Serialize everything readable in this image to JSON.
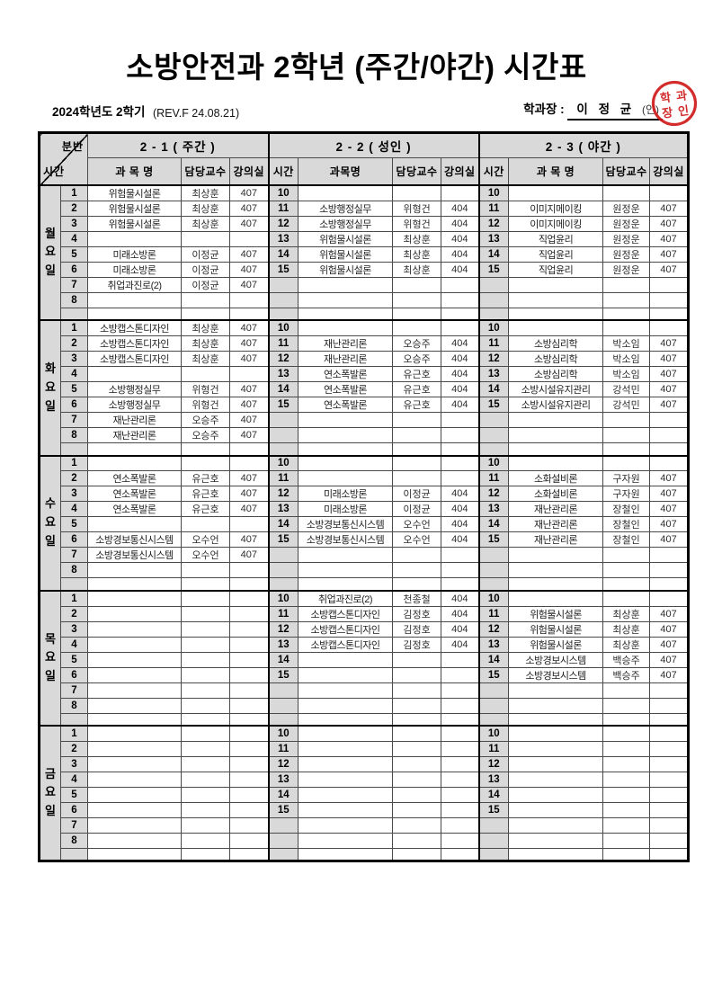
{
  "page": {
    "title": "소방안전과 2학년 (주간/야간) 시간표",
    "semester": "2024학년도 2학기",
    "revision": "(REV.F 24.08.21)",
    "signature_label": "학과장 :",
    "signature_name": "이 정 균",
    "signature_seal_suffix": "(인)",
    "stamp_chars": [
      "학",
      "과",
      "장",
      "인"
    ]
  },
  "colors": {
    "header_bg": "#d9d9d9",
    "stamp_red": "#cf1b1b",
    "border": "#000000"
  },
  "header": {
    "corner_top": "분반",
    "corner_bottom": "시간",
    "groups": [
      {
        "label": "2 - 1 ( 주간 )",
        "cols": [
          "과 목 명",
          "담당교수",
          "강의실"
        ]
      },
      {
        "label": "2 - 2 ( 성인  )",
        "cols": [
          "시간",
          "과목명",
          "담당교수",
          "강의실"
        ]
      },
      {
        "label": "2 - 3 ( 야간 )",
        "cols": [
          "시간",
          "과 목 명",
          "담당교수",
          "강의실"
        ]
      }
    ]
  },
  "days": [
    {
      "name": "월요일",
      "rows": [
        [
          "1",
          "위험물시설론",
          "최상훈",
          "407",
          "10",
          "",
          "",
          "",
          "10",
          "",
          "",
          ""
        ],
        [
          "2",
          "위험물시설론",
          "최상훈",
          "407",
          "11",
          "소방행정실무",
          "위형건",
          "404",
          "11",
          "이미지메이킹",
          "원정운",
          "407"
        ],
        [
          "3",
          "위험물시설론",
          "최상훈",
          "407",
          "12",
          "소방행정실무",
          "위형건",
          "404",
          "12",
          "이미지메이킹",
          "원정운",
          "407"
        ],
        [
          "4",
          "",
          "",
          "",
          "13",
          "위험물시설론",
          "최상훈",
          "404",
          "13",
          "직업윤리",
          "원정운",
          "407"
        ],
        [
          "5",
          "미래소방론",
          "이정균",
          "407",
          "14",
          "위험물시설론",
          "최상훈",
          "404",
          "14",
          "직업윤리",
          "원정운",
          "407"
        ],
        [
          "6",
          "미래소방론",
          "이정균",
          "407",
          "15",
          "위험물시설론",
          "최상훈",
          "404",
          "15",
          "직업윤리",
          "원정운",
          "407"
        ],
        [
          "7",
          "취업과진로(2)",
          "이정균",
          "407",
          "",
          "",
          "",
          "",
          "",
          "",
          "",
          ""
        ],
        [
          "8",
          "",
          "",
          "",
          "",
          "",
          "",
          "",
          "",
          "",
          "",
          ""
        ],
        [
          "",
          "",
          "",
          "",
          "",
          "",
          "",
          "",
          "",
          "",
          "",
          ""
        ]
      ]
    },
    {
      "name": "화요일",
      "rows": [
        [
          "1",
          "소방캡스톤디자인",
          "최상훈",
          "407",
          "10",
          "",
          "",
          "",
          "10",
          "",
          "",
          ""
        ],
        [
          "2",
          "소방캡스톤디자인",
          "최상훈",
          "407",
          "11",
          "재난관리론",
          "오승주",
          "404",
          "11",
          "소방심리학",
          "박소임",
          "407"
        ],
        [
          "3",
          "소방캡스톤디자인",
          "최상훈",
          "407",
          "12",
          "재난관리론",
          "오승주",
          "404",
          "12",
          "소방심리학",
          "박소임",
          "407"
        ],
        [
          "4",
          "",
          "",
          "",
          "13",
          "연소폭발론",
          "유근호",
          "404",
          "13",
          "소방심리학",
          "박소임",
          "407"
        ],
        [
          "5",
          "소방행정실무",
          "위형건",
          "407",
          "14",
          "연소폭발론",
          "유근호",
          "404",
          "14",
          "소방시설유지관리",
          "강석민",
          "407"
        ],
        [
          "6",
          "소방행정실무",
          "위형건",
          "407",
          "15",
          "연소폭발론",
          "유근호",
          "404",
          "15",
          "소방시설유지관리",
          "강석민",
          "407"
        ],
        [
          "7",
          "재난관리론",
          "오승주",
          "407",
          "",
          "",
          "",
          "",
          "",
          "",
          "",
          ""
        ],
        [
          "8",
          "재난관리론",
          "오승주",
          "407",
          "",
          "",
          "",
          "",
          "",
          "",
          "",
          ""
        ],
        [
          "",
          "",
          "",
          "",
          "",
          "",
          "",
          "",
          "",
          "",
          "",
          ""
        ]
      ]
    },
    {
      "name": "수요일",
      "rows": [
        [
          "1",
          "",
          "",
          "",
          "10",
          "",
          "",
          "",
          "10",
          "",
          "",
          ""
        ],
        [
          "2",
          "연소폭발론",
          "유근호",
          "407",
          "11",
          "",
          "",
          "",
          "11",
          "소화설비론",
          "구자원",
          "407"
        ],
        [
          "3",
          "연소폭발론",
          "유근호",
          "407",
          "12",
          "미래소방론",
          "이정균",
          "404",
          "12",
          "소화설비론",
          "구자원",
          "407"
        ],
        [
          "4",
          "연소폭발론",
          "유근호",
          "407",
          "13",
          "미래소방론",
          "이정균",
          "404",
          "13",
          "재난관리론",
          "장철인",
          "407"
        ],
        [
          "5",
          "",
          "",
          "",
          "14",
          "소방경보통신시스템",
          "오수언",
          "404",
          "14",
          "재난관리론",
          "장철인",
          "407"
        ],
        [
          "6",
          "소방경보통신시스템",
          "오수언",
          "407",
          "15",
          "소방경보통신시스템",
          "오수언",
          "404",
          "15",
          "재난관리론",
          "장철인",
          "407"
        ],
        [
          "7",
          "소방경보통신시스템",
          "오수언",
          "407",
          "",
          "",
          "",
          "",
          "",
          "",
          "",
          ""
        ],
        [
          "8",
          "",
          "",
          "",
          "",
          "",
          "",
          "",
          "",
          "",
          "",
          ""
        ],
        [
          "",
          "",
          "",
          "",
          "",
          "",
          "",
          "",
          "",
          "",
          "",
          ""
        ]
      ]
    },
    {
      "name": "목요일",
      "rows": [
        [
          "1",
          "",
          "",
          "",
          "10",
          "취업과진로(2)",
          "천종철",
          "404",
          "10",
          "",
          "",
          ""
        ],
        [
          "2",
          "",
          "",
          "",
          "11",
          "소방캡스톤디자인",
          "김정호",
          "404",
          "11",
          "위험물시설론",
          "최상훈",
          "407"
        ],
        [
          "3",
          "",
          "",
          "",
          "12",
          "소방캡스톤디자인",
          "김정호",
          "404",
          "12",
          "위험물시설론",
          "최상훈",
          "407"
        ],
        [
          "4",
          "",
          "",
          "",
          "13",
          "소방캡스톤디자인",
          "김정호",
          "404",
          "13",
          "위험물시설론",
          "최상훈",
          "407"
        ],
        [
          "5",
          "",
          "",
          "",
          "14",
          "",
          "",
          "",
          "14",
          "소방경보시스템",
          "백승주",
          "407"
        ],
        [
          "6",
          "",
          "",
          "",
          "15",
          "",
          "",
          "",
          "15",
          "소방경보시스템",
          "백승주",
          "407"
        ],
        [
          "7",
          "",
          "",
          "",
          "",
          "",
          "",
          "",
          "",
          "",
          "",
          ""
        ],
        [
          "8",
          "",
          "",
          "",
          "",
          "",
          "",
          "",
          "",
          "",
          "",
          ""
        ],
        [
          "",
          "",
          "",
          "",
          "",
          "",
          "",
          "",
          "",
          "",
          "",
          ""
        ]
      ]
    },
    {
      "name": "금요일",
      "rows": [
        [
          "1",
          "",
          "",
          "",
          "10",
          "",
          "",
          "",
          "10",
          "",
          "",
          ""
        ],
        [
          "2",
          "",
          "",
          "",
          "11",
          "",
          "",
          "",
          "11",
          "",
          "",
          ""
        ],
        [
          "3",
          "",
          "",
          "",
          "12",
          "",
          "",
          "",
          "12",
          "",
          "",
          ""
        ],
        [
          "4",
          "",
          "",
          "",
          "13",
          "",
          "",
          "",
          "13",
          "",
          "",
          ""
        ],
        [
          "5",
          "",
          "",
          "",
          "14",
          "",
          "",
          "",
          "14",
          "",
          "",
          ""
        ],
        [
          "6",
          "",
          "",
          "",
          "15",
          "",
          "",
          "",
          "15",
          "",
          "",
          ""
        ],
        [
          "7",
          "",
          "",
          "",
          "",
          "",
          "",
          "",
          "",
          "",
          "",
          ""
        ],
        [
          "8",
          "",
          "",
          "",
          "",
          "",
          "",
          "",
          "",
          "",
          "",
          ""
        ],
        [
          "",
          "",
          "",
          "",
          "",
          "",
          "",
          "",
          "",
          "",
          "",
          ""
        ]
      ]
    }
  ]
}
